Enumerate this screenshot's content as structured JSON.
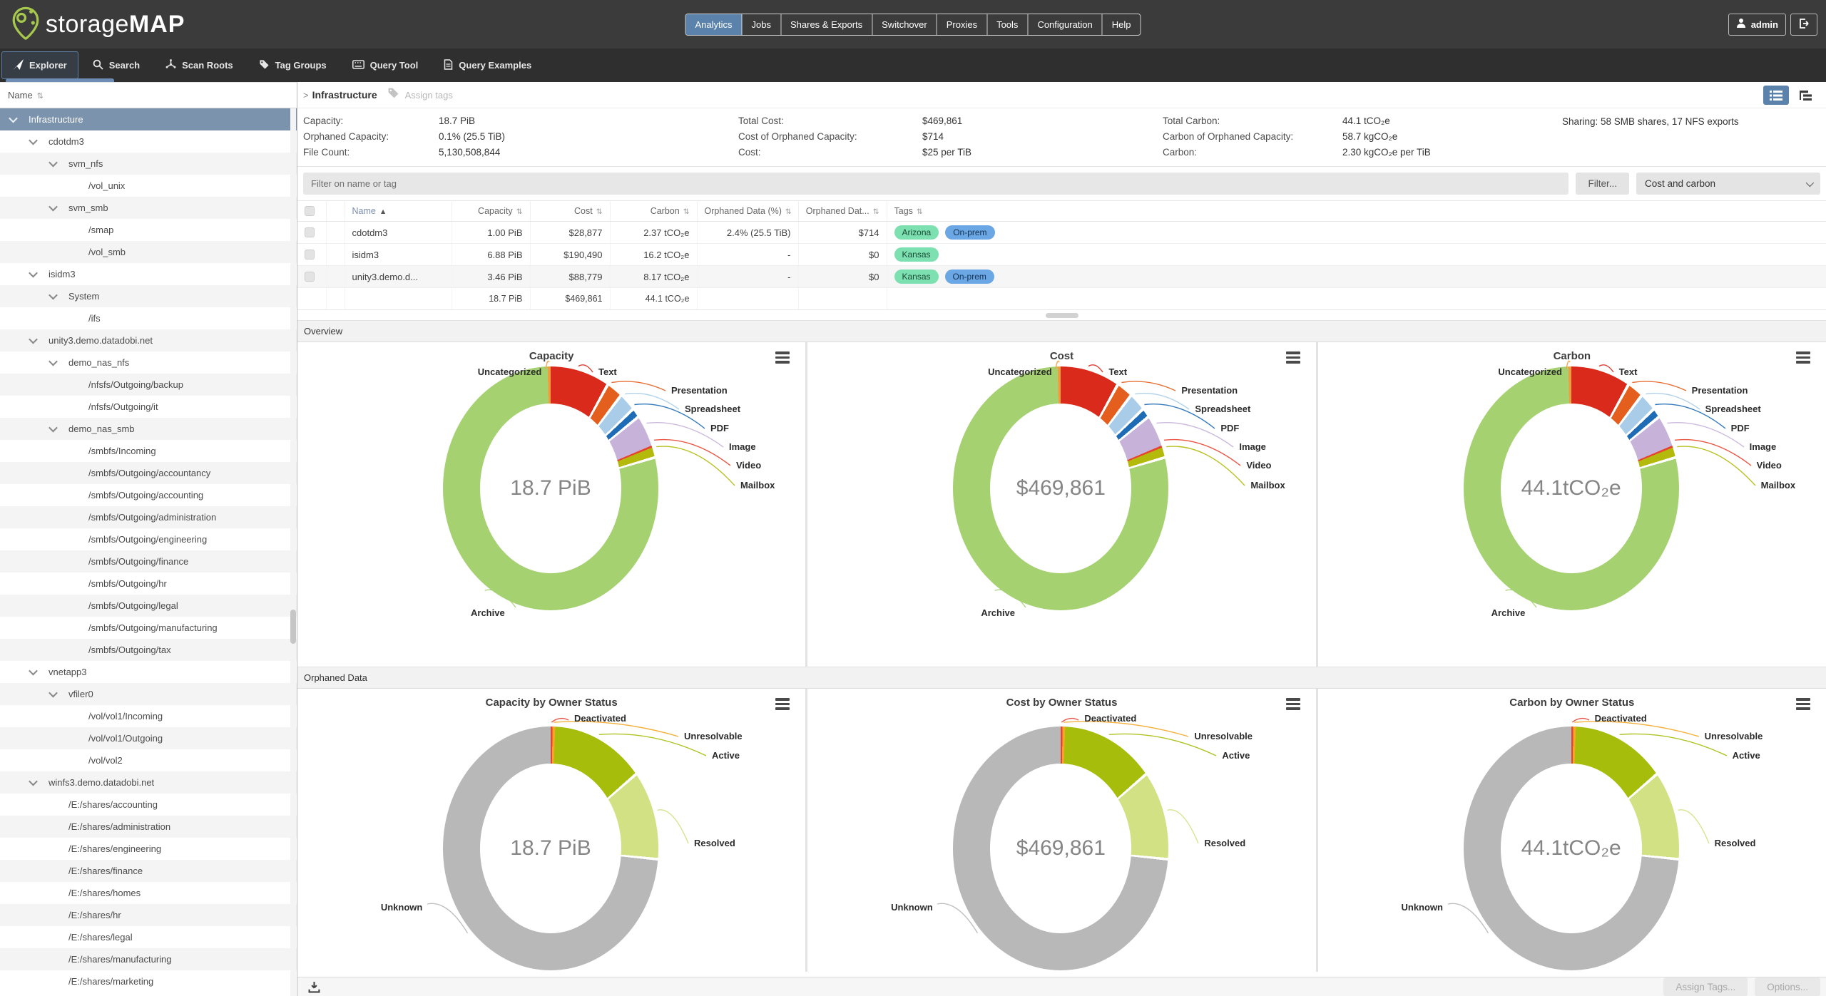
{
  "header": {
    "logo": {
      "light": "storage",
      "bold": "MAP"
    },
    "nav_tabs": [
      {
        "label": "Analytics",
        "active": true
      },
      {
        "label": "Jobs",
        "active": false
      },
      {
        "label": "Shares & Exports",
        "active": false
      },
      {
        "label": "Switchover",
        "active": false
      },
      {
        "label": "Proxies",
        "active": false
      },
      {
        "label": "Tools",
        "active": false
      },
      {
        "label": "Configuration",
        "active": false
      },
      {
        "label": "Help",
        "active": false
      }
    ],
    "user_label": "admin"
  },
  "toolbar": {
    "items": [
      {
        "label": "Explorer",
        "icon": "explorer-icon",
        "active": true
      },
      {
        "label": "Search",
        "icon": "search-icon",
        "active": false
      },
      {
        "label": "Scan Roots",
        "icon": "scan-roots-icon",
        "active": false
      },
      {
        "label": "Tag Groups",
        "icon": "tag-icon",
        "active": false
      },
      {
        "label": "Query Tool",
        "icon": "keyboard-icon",
        "active": false
      },
      {
        "label": "Query Examples",
        "icon": "document-icon",
        "active": false
      }
    ]
  },
  "sidebar": {
    "header_label": "Name",
    "sort_icon": "⇅",
    "tree": [
      {
        "label": "Infrastructure",
        "level": 0,
        "expandable": true,
        "selected": true
      },
      {
        "label": "cdotdm3",
        "level": 1,
        "expandable": true
      },
      {
        "label": "svm_nfs",
        "level": 2,
        "expandable": true
      },
      {
        "label": "/vol_unix",
        "level": 3
      },
      {
        "label": "svm_smb",
        "level": 2,
        "expandable": true
      },
      {
        "label": "/smap",
        "level": 3
      },
      {
        "label": "/vol_smb",
        "level": 3
      },
      {
        "label": "isidm3",
        "level": 1,
        "expandable": true
      },
      {
        "label": "System",
        "level": 2,
        "expandable": true
      },
      {
        "label": "/ifs",
        "level": 3
      },
      {
        "label": "unity3.demo.datadobi.net",
        "level": 1,
        "expandable": true
      },
      {
        "label": "demo_nas_nfs",
        "level": 2,
        "expandable": true
      },
      {
        "label": "/nfsfs/Outgoing/backup",
        "level": 3
      },
      {
        "label": "/nfsfs/Outgoing/it",
        "level": 3
      },
      {
        "label": "demo_nas_smb",
        "level": 2,
        "expandable": true
      },
      {
        "label": "/smbfs/Incoming",
        "level": 3
      },
      {
        "label": "/smbfs/Outgoing/accountancy",
        "level": 3
      },
      {
        "label": "/smbfs/Outgoing/accounting",
        "level": 3
      },
      {
        "label": "/smbfs/Outgoing/administration",
        "level": 3
      },
      {
        "label": "/smbfs/Outgoing/engineering",
        "level": 3
      },
      {
        "label": "/smbfs/Outgoing/finance",
        "level": 3
      },
      {
        "label": "/smbfs/Outgoing/hr",
        "level": 3
      },
      {
        "label": "/smbfs/Outgoing/legal",
        "level": 3
      },
      {
        "label": "/smbfs/Outgoing/manufacturing",
        "level": 3
      },
      {
        "label": "/smbfs/Outgoing/tax",
        "level": 3
      },
      {
        "label": "vnetapp3",
        "level": 1,
        "expandable": true
      },
      {
        "label": "vfiler0",
        "level": 2,
        "expandable": true
      },
      {
        "label": "/vol/vol1/Incoming",
        "level": 3
      },
      {
        "label": "/vol/vol1/Outgoing",
        "level": 3
      },
      {
        "label": "/vol/vol2",
        "level": 3
      },
      {
        "label": "winfs3.demo.datadobi.net",
        "level": 1,
        "expandable": true
      },
      {
        "label": "/E:/shares/accounting",
        "level": 2
      },
      {
        "label": "/E:/shares/administration",
        "level": 2
      },
      {
        "label": "/E:/shares/engineering",
        "level": 2
      },
      {
        "label": "/E:/shares/finance",
        "level": 2
      },
      {
        "label": "/E:/shares/homes",
        "level": 2
      },
      {
        "label": "/E:/shares/hr",
        "level": 2
      },
      {
        "label": "/E:/shares/legal",
        "level": 2
      },
      {
        "label": "/E:/shares/manufacturing",
        "level": 2
      },
      {
        "label": "/E:/shares/marketing",
        "level": 2
      }
    ]
  },
  "main": {
    "breadcrumb": {
      "arrow": ">",
      "title": "Infrastructure",
      "assign_tags": "Assign tags"
    },
    "stats": {
      "groups": [
        {
          "rows": [
            {
              "label": "Capacity:",
              "value": "18.7 PiB"
            },
            {
              "label": "Orphaned Capacity:",
              "value": "0.1% (25.5 TiB)"
            },
            {
              "label": "File Count:",
              "value": "5,130,508,844"
            }
          ]
        },
        {
          "rows": [
            {
              "label": "Total Cost:",
              "value": "$469,861"
            },
            {
              "label": "Cost of Orphaned Capacity:",
              "value": "$714"
            },
            {
              "label": "Cost:",
              "value": "$25 per TiB"
            }
          ]
        },
        {
          "rows": [
            {
              "label": "Total Carbon:",
              "value": "44.1 tCO₂e"
            },
            {
              "label": "Carbon of Orphaned Capacity:",
              "value": "58.7 kgCO₂e"
            },
            {
              "label": "Carbon:",
              "value": "2.30 kgCO₂e per TiB"
            }
          ]
        }
      ],
      "sharing": "Sharing: 58 SMB shares, 17 NFS exports"
    },
    "filter": {
      "placeholder": "Filter on name or tag",
      "filter_button": "Filter...",
      "view_select": "Cost and carbon"
    },
    "table": {
      "columns": [
        {
          "label": "",
          "sortable": false
        },
        {
          "label": "Name",
          "sortable": true,
          "sorted": "asc"
        },
        {
          "label": "Capacity",
          "sortable": true,
          "align": "right"
        },
        {
          "label": "Cost",
          "sortable": true,
          "align": "right"
        },
        {
          "label": "Carbon",
          "sortable": true,
          "align": "right"
        },
        {
          "label": "Orphaned Data (%)",
          "sortable": true,
          "align": "right"
        },
        {
          "label": "Orphaned Dat...",
          "sortable": true,
          "align": "right"
        },
        {
          "label": "Tags",
          "sortable": true
        }
      ],
      "rows": [
        {
          "name": "cdotdm3",
          "capacity": "1.00 PiB",
          "cost": "$28,877",
          "carbon": "2.37 tCO₂e",
          "orphaned_pct": "2.4% (25.5 TiB)",
          "orphaned_cost": "$714",
          "tags": [
            {
              "label": "Arizona",
              "color": "green"
            },
            {
              "label": "On-prem",
              "color": "blue"
            }
          ]
        },
        {
          "name": "isidm3",
          "capacity": "6.88 PiB",
          "cost": "$190,490",
          "carbon": "16.2 tCO₂e",
          "orphaned_pct": "-",
          "orphaned_cost": "$0",
          "tags": [
            {
              "label": "Kansas",
              "color": "green"
            }
          ]
        },
        {
          "name": "unity3.demo.d...",
          "capacity": "3.46 PiB",
          "cost": "$88,779",
          "carbon": "8.17 tCO₂e",
          "orphaned_pct": "-",
          "orphaned_cost": "$0",
          "tags": [
            {
              "label": "Kansas",
              "color": "green"
            },
            {
              "label": "On-prem",
              "color": "blue"
            }
          ]
        }
      ],
      "total": {
        "capacity": "18.7 PiB",
        "cost": "$469,861",
        "carbon": "44.1 tCO₂e"
      }
    },
    "sections": [
      {
        "title": "Overview"
      },
      {
        "title": "Orphaned Data"
      }
    ],
    "footer": {
      "assign_tags": "Assign Tags...",
      "options": "Options..."
    }
  },
  "chart_data": [
    {
      "type": "donut",
      "title": "Capacity",
      "center": "18.7 PiB",
      "layout": "overview",
      "slices": [
        {
          "label": "Text",
          "value": 8.0,
          "color": "#d92a1c"
        },
        {
          "label": "Presentation",
          "value": 2.3,
          "color": "#e45f1e"
        },
        {
          "label": "Spreadsheet",
          "value": 2.5,
          "color": "#a9cde8"
        },
        {
          "label": "PDF",
          "value": 1.3,
          "color": "#1e6cb5"
        },
        {
          "label": "Image",
          "value": 4.5,
          "color": "#c7b3da"
        },
        {
          "label": "Video",
          "value": 0.3,
          "color": "#e8432e"
        },
        {
          "label": "Mailbox",
          "value": 1.5,
          "color": "#b3ba0c"
        },
        {
          "label": "Archive",
          "value": 79.2,
          "color": "#a5d171"
        },
        {
          "label": "Uncategorized",
          "value": 0.4,
          "color": "#f49d3f"
        }
      ]
    },
    {
      "type": "donut",
      "title": "Cost",
      "center": "$469,861",
      "layout": "overview",
      "slices": [
        {
          "label": "Text",
          "value": 8.0,
          "color": "#d92a1c"
        },
        {
          "label": "Presentation",
          "value": 2.3,
          "color": "#e45f1e"
        },
        {
          "label": "Spreadsheet",
          "value": 2.5,
          "color": "#a9cde8"
        },
        {
          "label": "PDF",
          "value": 1.3,
          "color": "#1e6cb5"
        },
        {
          "label": "Image",
          "value": 4.5,
          "color": "#c7b3da"
        },
        {
          "label": "Video",
          "value": 0.3,
          "color": "#e8432e"
        },
        {
          "label": "Mailbox",
          "value": 1.5,
          "color": "#b3ba0c"
        },
        {
          "label": "Archive",
          "value": 79.2,
          "color": "#a5d171"
        },
        {
          "label": "Uncategorized",
          "value": 0.4,
          "color": "#f49d3f"
        }
      ]
    },
    {
      "type": "donut",
      "title": "Carbon",
      "center": "44.1tCO₂e",
      "layout": "overview",
      "slices": [
        {
          "label": "Text",
          "value": 8.0,
          "color": "#d92a1c"
        },
        {
          "label": "Presentation",
          "value": 2.3,
          "color": "#e45f1e"
        },
        {
          "label": "Spreadsheet",
          "value": 2.5,
          "color": "#a9cde8"
        },
        {
          "label": "PDF",
          "value": 1.3,
          "color": "#1e6cb5"
        },
        {
          "label": "Image",
          "value": 4.5,
          "color": "#c7b3da"
        },
        {
          "label": "Video",
          "value": 0.3,
          "color": "#e8432e"
        },
        {
          "label": "Mailbox",
          "value": 1.5,
          "color": "#b3ba0c"
        },
        {
          "label": "Archive",
          "value": 79.2,
          "color": "#a5d171"
        },
        {
          "label": "Uncategorized",
          "value": 0.4,
          "color": "#f49d3f"
        }
      ]
    },
    {
      "type": "donut",
      "title": "Capacity by Owner Status",
      "center": "18.7 PiB",
      "layout": "owner",
      "slices": [
        {
          "label": "Deactivated",
          "value": 0.25,
          "color": "#e64334"
        },
        {
          "label": "Unresolvable",
          "value": 0.35,
          "color": "#f5a623"
        },
        {
          "label": "Active",
          "value": 13.0,
          "color": "#a6bd0c"
        },
        {
          "label": "Resolved",
          "value": 13.0,
          "color": "#d2e183"
        },
        {
          "label": "Unknown",
          "value": 73.4,
          "color": "#b8b8b8"
        }
      ]
    },
    {
      "type": "donut",
      "title": "Cost by Owner Status",
      "center": "$469,861",
      "layout": "owner",
      "slices": [
        {
          "label": "Deactivated",
          "value": 0.25,
          "color": "#e64334"
        },
        {
          "label": "Unresolvable",
          "value": 0.35,
          "color": "#f5a623"
        },
        {
          "label": "Active",
          "value": 13.0,
          "color": "#a6bd0c"
        },
        {
          "label": "Resolved",
          "value": 13.0,
          "color": "#d2e183"
        },
        {
          "label": "Unknown",
          "value": 73.4,
          "color": "#b8b8b8"
        }
      ]
    },
    {
      "type": "donut",
      "title": "Carbon by Owner Status",
      "center": "44.1tCO₂e",
      "layout": "owner",
      "slices": [
        {
          "label": "Deactivated",
          "value": 0.25,
          "color": "#e64334"
        },
        {
          "label": "Unresolvable",
          "value": 0.35,
          "color": "#f5a623"
        },
        {
          "label": "Active",
          "value": 13.0,
          "color": "#a6bd0c"
        },
        {
          "label": "Resolved",
          "value": 13.0,
          "color": "#d2e183"
        },
        {
          "label": "Unknown",
          "value": 73.4,
          "color": "#b8b8b8"
        }
      ]
    }
  ],
  "colors": {
    "nav_active": "#5b82ab",
    "tree_selected": "#7b93ad",
    "tag_green": "#7ce0b0",
    "tag_blue": "#6ba7e5",
    "header_bg": "#3b3b3b",
    "toolbar_bg": "#2f2f2f"
  }
}
